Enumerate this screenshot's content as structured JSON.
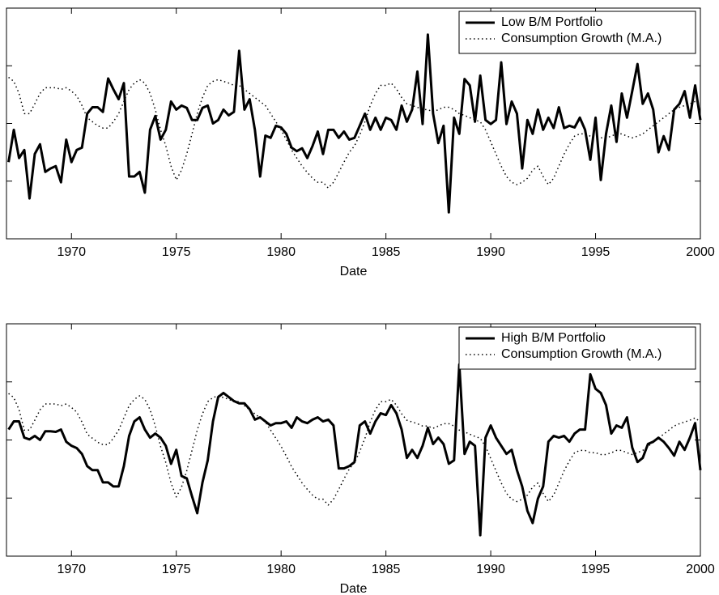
{
  "chart_data": [
    {
      "type": "line",
      "xlabel": "Date",
      "legend": "upper right",
      "xlim": [
        1966.9,
        2000
      ],
      "ylim": [
        -2,
        2
      ],
      "xticks": [
        1970,
        1975,
        1980,
        1985,
        1990,
        1995,
        2000
      ],
      "yticks": [
        -1,
        0,
        1
      ],
      "x": [
        1967,
        1967.25,
        1967.5,
        1967.75,
        1968,
        1968.25,
        1968.5,
        1968.75,
        1969,
        1969.25,
        1969.5,
        1969.75,
        1970,
        1970.25,
        1970.5,
        1970.75,
        1971,
        1971.25,
        1971.5,
        1971.75,
        1972,
        1972.25,
        1972.5,
        1972.75,
        1973,
        1973.25,
        1973.5,
        1973.75,
        1974,
        1974.25,
        1974.5,
        1974.75,
        1975,
        1975.25,
        1975.5,
        1975.75,
        1976,
        1976.25,
        1976.5,
        1976.75,
        1977,
        1977.25,
        1977.5,
        1977.75,
        1978,
        1978.25,
        1978.5,
        1978.75,
        1979,
        1979.25,
        1979.5,
        1979.75,
        1980,
        1980.25,
        1980.5,
        1980.75,
        1981,
        1981.25,
        1981.5,
        1981.75,
        1982,
        1982.25,
        1982.5,
        1982.75,
        1983,
        1983.25,
        1983.5,
        1983.75,
        1984,
        1984.25,
        1984.5,
        1984.75,
        1985,
        1985.25,
        1985.5,
        1985.75,
        1986,
        1986.25,
        1986.5,
        1986.75,
        1987,
        1987.25,
        1987.5,
        1987.75,
        1988,
        1988.25,
        1988.5,
        1988.75,
        1989,
        1989.25,
        1989.5,
        1989.75,
        1990,
        1990.25,
        1990.5,
        1990.75,
        1991,
        1991.25,
        1991.5,
        1991.75,
        1992,
        1992.25,
        1992.5,
        1992.75,
        1993,
        1993.25,
        1993.5,
        1993.75,
        1994,
        1994.25,
        1994.5,
        1994.75,
        1995,
        1995.25,
        1995.5,
        1995.75,
        1996,
        1996.25,
        1996.5,
        1996.75,
        1997,
        1997.25,
        1997.5,
        1997.75,
        1998,
        1998.25,
        1998.5,
        1998.75,
        1999,
        1999.25,
        1999.5,
        1999.75,
        2000
      ],
      "series": [
        {
          "name": "Low B/M Portfolio",
          "color": "#000000",
          "linestyle": "solid",
          "values": [
            -0.67,
            -0.11,
            -0.6,
            -0.46,
            -1.3,
            -0.53,
            -0.36,
            -0.84,
            -0.78,
            -0.74,
            -1.02,
            -0.28,
            -0.67,
            -0.46,
            -0.42,
            0.17,
            0.28,
            0.28,
            0.2,
            0.78,
            0.59,
            0.42,
            0.7,
            -0.92,
            -0.92,
            -0.84,
            -1.2,
            -0.11,
            0.13,
            -0.28,
            -0.11,
            0.38,
            0.24,
            0.31,
            0.27,
            0.06,
            0.06,
            0.27,
            0.31,
            0,
            0.06,
            0.24,
            0.14,
            0.2,
            1.26,
            0.24,
            0.42,
            -0.11,
            -0.92,
            -0.21,
            -0.25,
            -0.04,
            -0.07,
            -0.18,
            -0.42,
            -0.48,
            -0.43,
            -0.6,
            -0.39,
            -0.14,
            -0.53,
            -0.11,
            -0.11,
            -0.25,
            -0.14,
            -0.28,
            -0.25,
            -0.04,
            0.17,
            -0.11,
            0.1,
            -0.11,
            0.1,
            0.06,
            -0.11,
            0.31,
            0.03,
            0.24,
            0.9,
            -0.01,
            1.54,
            0.17,
            -0.34,
            -0.04,
            -1.54,
            0.1,
            -0.18,
            0.77,
            0.66,
            0.03,
            0.83,
            0.06,
            -0.01,
            0.06,
            1.06,
            -0.01,
            0.38,
            0.17,
            -0.78,
            0.06,
            -0.18,
            0.24,
            -0.11,
            0.1,
            -0.08,
            0.28,
            -0.08,
            -0.04,
            -0.07,
            0.1,
            -0.11,
            -0.63,
            0.1,
            -0.98,
            -0.18,
            0.31,
            -0.32,
            0.52,
            0.1,
            0.56,
            1.03,
            0.34,
            0.52,
            0.24,
            -0.5,
            -0.22,
            -0.46,
            0.24,
            0.34,
            0.56,
            0.1,
            0.66,
            0.06
          ]
        },
        {
          "name": "Consumption Growth (M.A.)",
          "color": "#000000",
          "linestyle": "dotted",
          "values": [
            0.8,
            0.73,
            0.52,
            0.17,
            0.17,
            0.34,
            0.52,
            0.62,
            0.62,
            0.62,
            0.59,
            0.62,
            0.56,
            0.48,
            0.31,
            0.1,
            0.03,
            -0.04,
            -0.08,
            -0.08,
            0.03,
            0.17,
            0.38,
            0.59,
            0.7,
            0.76,
            0.7,
            0.52,
            0.24,
            -0.11,
            -0.39,
            -0.74,
            -0.98,
            -0.81,
            -0.53,
            -0.18,
            0.17,
            0.45,
            0.66,
            0.73,
            0.76,
            0.73,
            0.7,
            0.66,
            0.66,
            0.59,
            0.52,
            0.45,
            0.38,
            0.31,
            0.17,
            0.03,
            -0.11,
            -0.28,
            -0.46,
            -0.6,
            -0.74,
            -0.85,
            -0.95,
            -1.02,
            -1.02,
            -1.12,
            -1.02,
            -0.85,
            -0.67,
            -0.5,
            -0.39,
            -0.2,
            0.03,
            0.31,
            0.52,
            0.66,
            0.66,
            0.7,
            0.6,
            0.45,
            0.34,
            0.31,
            0.28,
            0.24,
            0.24,
            0.2,
            0.24,
            0.28,
            0.28,
            0.24,
            0.17,
            0.14,
            0.1,
            0.06,
            0.03,
            -0.11,
            -0.32,
            -0.53,
            -0.74,
            -0.92,
            -1.02,
            -1.06,
            -1.02,
            -0.95,
            -0.81,
            -0.74,
            -0.92,
            -1.06,
            -0.95,
            -0.74,
            -0.53,
            -0.36,
            -0.22,
            -0.18,
            -0.18,
            -0.22,
            -0.22,
            -0.25,
            -0.25,
            -0.22,
            -0.18,
            -0.18,
            -0.22,
            -0.25,
            -0.22,
            -0.18,
            -0.11,
            -0.04,
            0.03,
            0.1,
            0.17,
            0.24,
            0.28,
            0.31,
            0.34,
            0.38,
            0.31
          ]
        }
      ]
    },
    {
      "type": "line",
      "xlabel": "Date",
      "legend": "upper right",
      "xlim": [
        1966.9,
        2000
      ],
      "ylim": [
        -2,
        2
      ],
      "xticks": [
        1970,
        1975,
        1980,
        1985,
        1990,
        1995,
        2000
      ],
      "yticks": [
        -1,
        0,
        1
      ],
      "x": [
        1967,
        1967.25,
        1967.5,
        1967.75,
        1968,
        1968.25,
        1968.5,
        1968.75,
        1969,
        1969.25,
        1969.5,
        1969.75,
        1970,
        1970.25,
        1970.5,
        1970.75,
        1971,
        1971.25,
        1971.5,
        1971.75,
        1972,
        1972.25,
        1972.5,
        1972.75,
        1973,
        1973.25,
        1973.5,
        1973.75,
        1974,
        1974.25,
        1974.5,
        1974.75,
        1975,
        1975.25,
        1975.5,
        1975.75,
        1976,
        1976.25,
        1976.5,
        1976.75,
        1977,
        1977.25,
        1977.5,
        1977.75,
        1978,
        1978.25,
        1978.5,
        1978.75,
        1979,
        1979.25,
        1979.5,
        1979.75,
        1980,
        1980.25,
        1980.5,
        1980.75,
        1981,
        1981.25,
        1981.5,
        1981.75,
        1982,
        1982.25,
        1982.5,
        1982.75,
        1983,
        1983.25,
        1983.5,
        1983.75,
        1984,
        1984.25,
        1984.5,
        1984.75,
        1985,
        1985.25,
        1985.5,
        1985.75,
        1986,
        1986.25,
        1986.5,
        1986.75,
        1987,
        1987.25,
        1987.5,
        1987.75,
        1988,
        1988.25,
        1988.5,
        1988.75,
        1989,
        1989.25,
        1989.5,
        1989.75,
        1990,
        1990.25,
        1990.5,
        1990.75,
        1991,
        1991.25,
        1991.5,
        1991.75,
        1992,
        1992.25,
        1992.5,
        1992.75,
        1993,
        1993.25,
        1993.5,
        1993.75,
        1994,
        1994.25,
        1994.5,
        1994.75,
        1995,
        1995.25,
        1995.5,
        1995.75,
        1996,
        1996.25,
        1996.5,
        1996.75,
        1997,
        1997.25,
        1997.5,
        1997.75,
        1998,
        1998.25,
        1998.5,
        1998.75,
        1999,
        1999.25,
        1999.5,
        1999.75,
        2000
      ],
      "series": [
        {
          "name": "High B/M Portfolio",
          "color": "#000000",
          "linestyle": "solid",
          "values": [
            0.18,
            0.32,
            0.32,
            0.04,
            0.01,
            0.07,
            0,
            0.15,
            0.15,
            0.14,
            0.18,
            -0.03,
            -0.1,
            -0.14,
            -0.24,
            -0.45,
            -0.52,
            -0.52,
            -0.73,
            -0.73,
            -0.8,
            -0.8,
            -0.45,
            0.07,
            0.32,
            0.39,
            0.18,
            0.04,
            0.11,
            0.04,
            -0.1,
            -0.41,
            -0.17,
            -0.62,
            -0.66,
            -0.97,
            -1.26,
            -0.73,
            -0.35,
            0.32,
            0.74,
            0.81,
            0.74,
            0.67,
            0.63,
            0.63,
            0.53,
            0.35,
            0.39,
            0.32,
            0.25,
            0.29,
            0.29,
            0.32,
            0.21,
            0.39,
            0.32,
            0.29,
            0.35,
            0.39,
            0.32,
            0.35,
            0.25,
            -0.49,
            -0.49,
            -0.45,
            -0.38,
            0.25,
            0.32,
            0.11,
            0.32,
            0.46,
            0.43,
            0.6,
            0.46,
            0.18,
            -0.31,
            -0.17,
            -0.31,
            -0.1,
            0.21,
            -0.07,
            0.04,
            -0.07,
            -0.41,
            -0.35,
            1.3,
            -0.24,
            -0.03,
            -0.1,
            -1.64,
            0.04,
            0.25,
            0.04,
            -0.1,
            -0.24,
            -0.17,
            -0.52,
            -0.8,
            -1.22,
            -1.43,
            -1.01,
            -0.8,
            -0.03,
            0.07,
            0.04,
            0.07,
            -0.03,
            0.11,
            0.18,
            0.18,
            1.13,
            0.88,
            0.81,
            0.6,
            0.11,
            0.25,
            0.21,
            0.39,
            -0.13,
            -0.38,
            -0.31,
            -0.07,
            -0.03,
            0.04,
            -0.03,
            -0.14,
            -0.27,
            -0.03,
            -0.17,
            0.04,
            0.29,
            -0.52
          ]
        },
        {
          "name": "Consumption Growth (M.A.)",
          "color": "#000000",
          "linestyle": "dotted",
          "values": [
            0.8,
            0.73,
            0.52,
            0.17,
            0.17,
            0.34,
            0.52,
            0.62,
            0.62,
            0.62,
            0.59,
            0.62,
            0.56,
            0.48,
            0.31,
            0.1,
            0.03,
            -0.04,
            -0.08,
            -0.08,
            0.03,
            0.17,
            0.38,
            0.59,
            0.7,
            0.76,
            0.7,
            0.52,
            0.24,
            -0.11,
            -0.39,
            -0.74,
            -0.98,
            -0.81,
            -0.53,
            -0.18,
            0.17,
            0.45,
            0.66,
            0.73,
            0.76,
            0.73,
            0.7,
            0.66,
            0.66,
            0.59,
            0.52,
            0.45,
            0.38,
            0.31,
            0.17,
            0.03,
            -0.11,
            -0.28,
            -0.46,
            -0.6,
            -0.74,
            -0.85,
            -0.95,
            -1.02,
            -1.02,
            -1.12,
            -1.02,
            -0.85,
            -0.67,
            -0.5,
            -0.39,
            -0.2,
            0.03,
            0.31,
            0.52,
            0.66,
            0.66,
            0.7,
            0.6,
            0.45,
            0.34,
            0.31,
            0.28,
            0.24,
            0.24,
            0.2,
            0.24,
            0.28,
            0.28,
            0.24,
            0.17,
            0.14,
            0.1,
            0.06,
            0.03,
            -0.11,
            -0.32,
            -0.53,
            -0.74,
            -0.92,
            -1.02,
            -1.06,
            -1.02,
            -0.95,
            -0.81,
            -0.74,
            -0.92,
            -1.06,
            -0.95,
            -0.74,
            -0.53,
            -0.36,
            -0.22,
            -0.18,
            -0.18,
            -0.22,
            -0.22,
            -0.25,
            -0.25,
            -0.22,
            -0.18,
            -0.18,
            -0.22,
            -0.25,
            -0.22,
            -0.18,
            -0.11,
            -0.04,
            0.03,
            0.1,
            0.17,
            0.24,
            0.28,
            0.31,
            0.34,
            0.38,
            0.31
          ]
        }
      ]
    }
  ]
}
